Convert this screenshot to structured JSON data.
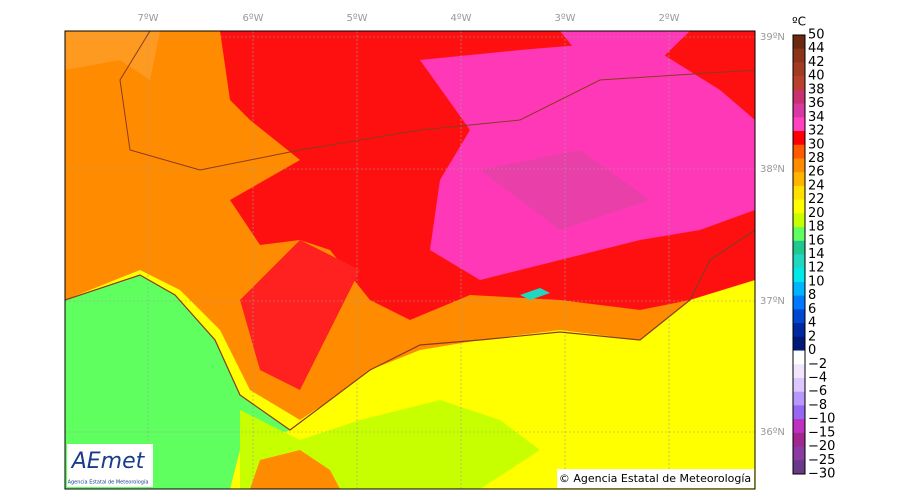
{
  "map": {
    "unit": "ºC",
    "lon_labels": [
      "7ºW",
      "6ºW",
      "5ºW",
      "4ºW",
      "3ºW",
      "2ºW"
    ],
    "lat_labels": [
      "39ºN",
      "38ºN",
      "37ºN",
      "36ºN"
    ],
    "colorbar": {
      "labels": [
        "50",
        "44",
        "42",
        "40",
        "38",
        "36",
        "34",
        "32",
        "30",
        "28",
        "26",
        "24",
        "22",
        "20",
        "18",
        "16",
        "14",
        "12",
        "10",
        "8",
        "6",
        "4",
        "2",
        "0",
        "−2",
        "−4",
        "−6",
        "−8",
        "−10",
        "−15",
        "−20",
        "−25",
        "−30"
      ],
      "colors": [
        "#6b2a10",
        "#8b3418",
        "#a23c20",
        "#b8402c",
        "#c83070",
        "#d838a0",
        "#ff40c0",
        "#ff0000",
        "#ff5a00",
        "#ff8c00",
        "#ffb400",
        "#ffe000",
        "#ffff00",
        "#c8ff00",
        "#60ff60",
        "#20c890",
        "#20d8c0",
        "#00e8e8",
        "#00b4ff",
        "#0078ff",
        "#0048d0",
        "#0028a0",
        "#001878",
        "#ffffff",
        "#f2e6ff",
        "#dcc8ff",
        "#b898ff",
        "#9468f0",
        "#c030c0",
        "#a02890",
        "#8a3ca0",
        "#6a3a8a"
      ]
    },
    "copyright": "© Agencia Estatal de Meteorología",
    "logo": {
      "name": "AEmet",
      "subtitle": "Agencia Estatal de Meteorología"
    }
  }
}
